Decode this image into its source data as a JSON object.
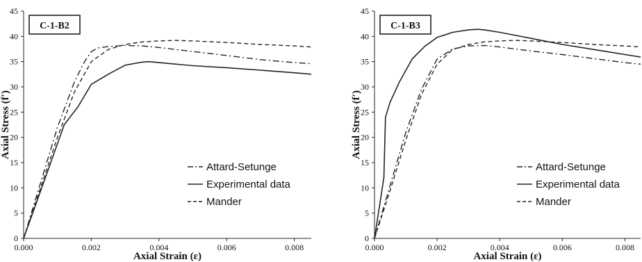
{
  "chart_data": [
    {
      "type": "line",
      "title": "C-1-B2",
      "xlabel": "Axial Strain (ε)",
      "ylabel": "Axial Stress (f′)",
      "xlim": [
        0,
        0.0085
      ],
      "ylim": [
        0,
        45
      ],
      "xticks": [
        "0.000",
        "0.002",
        "0.004",
        "0.006",
        "0.008"
      ],
      "yticks": [
        "0",
        "5",
        "10",
        "15",
        "20",
        "25",
        "30",
        "35",
        "40",
        "45"
      ],
      "grid": false,
      "legend_position": "bottom-right",
      "series": [
        {
          "name": "Attard-Setunge",
          "style": "dashdot",
          "color": "#222222",
          "x": [
            0,
            0.0005,
            0.001,
            0.0015,
            0.0018,
            0.002,
            0.0022,
            0.0025,
            0.003,
            0.0035,
            0.004,
            0.005,
            0.006,
            0.007,
            0.008,
            0.0085
          ],
          "y": [
            0,
            11,
            22,
            31,
            35,
            37,
            37.7,
            38.0,
            38.2,
            38.1,
            37.8,
            37.0,
            36.2,
            35.4,
            34.8,
            34.6
          ]
        },
        {
          "name": "Experimental data",
          "style": "solid",
          "color": "#222222",
          "x": [
            0,
            0.0004,
            0.0008,
            0.0012,
            0.0016,
            0.002,
            0.0025,
            0.003,
            0.0035,
            0.0037,
            0.004,
            0.005,
            0.006,
            0.007,
            0.008,
            0.0085
          ],
          "y": [
            0,
            7.5,
            15,
            22.5,
            26,
            30.5,
            32.5,
            34.3,
            34.9,
            35.0,
            34.8,
            34.2,
            33.8,
            33.3,
            32.8,
            32.5
          ]
        },
        {
          "name": "Mander",
          "style": "dashed",
          "color": "#222222",
          "x": [
            0,
            0.0005,
            0.001,
            0.0015,
            0.002,
            0.0025,
            0.003,
            0.0035,
            0.004,
            0.0045,
            0.005,
            0.006,
            0.007,
            0.008,
            0.0085
          ],
          "y": [
            0,
            10,
            20,
            29,
            35,
            37.4,
            38.4,
            38.9,
            39.1,
            39.2,
            39.1,
            38.8,
            38.4,
            38.1,
            37.9
          ]
        }
      ],
      "legend": [
        "Attard-Setunge",
        "Experimental data",
        "Mander"
      ]
    },
    {
      "type": "line",
      "title": "C-1-B3",
      "xlabel": "Axial Strain (ε)",
      "ylabel": "Axial Stress (f′)",
      "xlim": [
        0,
        0.0085
      ],
      "ylim": [
        0,
        45
      ],
      "xticks": [
        "0.000",
        "0.002",
        "0.004",
        "0.006",
        "0.008"
      ],
      "yticks": [
        "0",
        "5",
        "10",
        "15",
        "20",
        "25",
        "30",
        "35",
        "40",
        "45"
      ],
      "grid": false,
      "legend_position": "bottom-right",
      "series": [
        {
          "name": "Attard-Setunge",
          "style": "dashdot",
          "color": "#222222",
          "x": [
            0,
            0.0005,
            0.001,
            0.0015,
            0.002,
            0.0025,
            0.003,
            0.0035,
            0.004,
            0.005,
            0.006,
            0.007,
            0.008,
            0.0085
          ],
          "y": [
            0,
            10.5,
            21,
            29.5,
            35.5,
            37.5,
            38.1,
            38.2,
            37.9,
            37.1,
            36.4,
            35.6,
            34.8,
            34.5
          ]
        },
        {
          "name": "Experimental data",
          "style": "solid",
          "color": "#222222",
          "x": [
            0,
            0.0003,
            0.00035,
            0.0005,
            0.0008,
            0.0012,
            0.0016,
            0.002,
            0.0025,
            0.003,
            0.0033,
            0.0035,
            0.004,
            0.005,
            0.006,
            0.007,
            0.008,
            0.0085
          ],
          "y": [
            0,
            12,
            24,
            27,
            31,
            35.5,
            38,
            39.8,
            40.8,
            41.3,
            41.4,
            41.3,
            40.8,
            39.6,
            38.4,
            37.4,
            36.4,
            35.9
          ]
        },
        {
          "name": "Mander",
          "style": "dashed",
          "color": "#222222",
          "x": [
            0,
            0.0005,
            0.001,
            0.0015,
            0.002,
            0.0025,
            0.003,
            0.0035,
            0.004,
            0.0045,
            0.005,
            0.006,
            0.007,
            0.008,
            0.0085
          ],
          "y": [
            0,
            9.5,
            19.5,
            28.5,
            34.5,
            37.4,
            38.4,
            38.9,
            39.1,
            39.2,
            39.1,
            38.8,
            38.4,
            38.1,
            37.9
          ]
        }
      ],
      "legend": [
        "Attard-Setunge",
        "Experimental data",
        "Mander"
      ]
    }
  ]
}
